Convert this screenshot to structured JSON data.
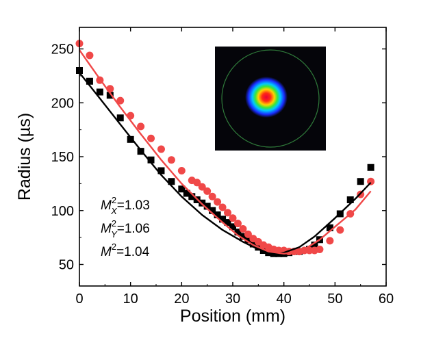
{
  "chart_data": {
    "type": "scatter",
    "xlabel": "Position (mm)",
    "ylabel": "Radius (µs)",
    "xlim": [
      0,
      60
    ],
    "ylim": [
      30,
      270
    ],
    "xticks": [
      0,
      10,
      20,
      30,
      40,
      50,
      60
    ],
    "yticks": [
      50,
      100,
      150,
      200,
      250
    ],
    "grid": false,
    "series": [
      {
        "color": "#000000",
        "marker": "square",
        "points": [
          [
            0,
            230
          ],
          [
            2,
            220
          ],
          [
            4,
            210
          ],
          [
            6,
            207
          ],
          [
            8,
            186
          ],
          [
            10,
            166
          ],
          [
            12,
            155
          ],
          [
            14,
            147
          ],
          [
            16,
            137
          ],
          [
            18,
            127
          ],
          [
            20,
            120
          ],
          [
            21,
            116
          ],
          [
            22,
            113
          ],
          [
            23,
            110
          ],
          [
            24,
            107
          ],
          [
            25,
            104
          ],
          [
            26,
            100
          ],
          [
            27,
            96
          ],
          [
            28,
            92
          ],
          [
            29,
            89
          ],
          [
            30,
            85
          ],
          [
            31,
            80
          ],
          [
            32,
            76
          ],
          [
            33,
            73
          ],
          [
            34,
            69
          ],
          [
            35,
            66
          ],
          [
            36,
            63
          ],
          [
            37,
            61
          ],
          [
            38,
            60
          ],
          [
            39,
            60
          ],
          [
            40,
            60
          ],
          [
            41,
            61
          ],
          [
            43,
            62
          ],
          [
            45,
            64
          ],
          [
            46,
            68
          ],
          [
            47,
            73
          ],
          [
            49,
            84
          ],
          [
            51,
            97
          ],
          [
            53,
            110
          ],
          [
            55,
            127
          ],
          [
            57,
            140
          ]
        ],
        "fit": [
          [
            0,
            228
          ],
          [
            4,
            204
          ],
          [
            8,
            180
          ],
          [
            12,
            156
          ],
          [
            16,
            133
          ],
          [
            20,
            113
          ],
          [
            24,
            96
          ],
          [
            28,
            82
          ],
          [
            32,
            71
          ],
          [
            35,
            64
          ],
          [
            37,
            61
          ],
          [
            38.5,
            60
          ],
          [
            40,
            61
          ],
          [
            43,
            66
          ],
          [
            46,
            76
          ],
          [
            50,
            93
          ],
          [
            54,
            111
          ],
          [
            57,
            126
          ]
        ]
      },
      {
        "color": "#f04848",
        "marker": "circle",
        "points": [
          [
            0,
            255
          ],
          [
            2,
            244
          ],
          [
            4,
            221
          ],
          [
            6,
            213
          ],
          [
            8,
            202
          ],
          [
            10,
            188
          ],
          [
            12,
            178
          ],
          [
            14,
            167
          ],
          [
            16,
            157
          ],
          [
            18,
            147
          ],
          [
            20,
            137
          ],
          [
            22,
            128
          ],
          [
            23,
            126
          ],
          [
            24,
            122
          ],
          [
            25,
            118
          ],
          [
            26,
            113
          ],
          [
            27,
            108
          ],
          [
            28,
            103
          ],
          [
            29,
            98
          ],
          [
            30,
            93
          ],
          [
            31,
            88
          ],
          [
            32,
            83
          ],
          [
            33,
            78
          ],
          [
            34,
            74
          ],
          [
            35,
            71
          ],
          [
            36,
            68
          ],
          [
            37,
            66
          ],
          [
            38,
            64
          ],
          [
            39,
            63
          ],
          [
            40,
            63
          ],
          [
            41,
            62
          ],
          [
            42,
            62
          ],
          [
            43,
            62
          ],
          [
            44,
            63
          ],
          [
            45,
            63
          ],
          [
            46,
            63
          ],
          [
            47,
            64
          ],
          [
            49,
            72
          ],
          [
            51,
            82
          ],
          [
            53,
            97
          ],
          [
            55,
            115
          ],
          [
            57,
            127
          ]
        ],
        "fit": [
          [
            0,
            249
          ],
          [
            4,
            222
          ],
          [
            8,
            196
          ],
          [
            12,
            171
          ],
          [
            16,
            147
          ],
          [
            20,
            125
          ],
          [
            24,
            106
          ],
          [
            28,
            89
          ],
          [
            31,
            77
          ],
          [
            34,
            68
          ],
          [
            37,
            62
          ],
          [
            40,
            60
          ],
          [
            42,
            61
          ],
          [
            44,
            64
          ],
          [
            47,
            73
          ],
          [
            50,
            85
          ],
          [
            54,
            101
          ],
          [
            57,
            118
          ]
        ]
      }
    ],
    "annotations": [
      {
        "sym": "M",
        "sup": "2",
        "sub": "X",
        "value": "=1.03"
      },
      {
        "sym": "M",
        "sup": "2",
        "sub": "Y",
        "value": "=1.06"
      },
      {
        "sym": "M",
        "sup": "2",
        "sub": "",
        "value": "=1.04"
      }
    ],
    "inset": {
      "kind": "beam-profile-image",
      "background": "#05050a",
      "ring_color": "#2f7a3a"
    }
  }
}
